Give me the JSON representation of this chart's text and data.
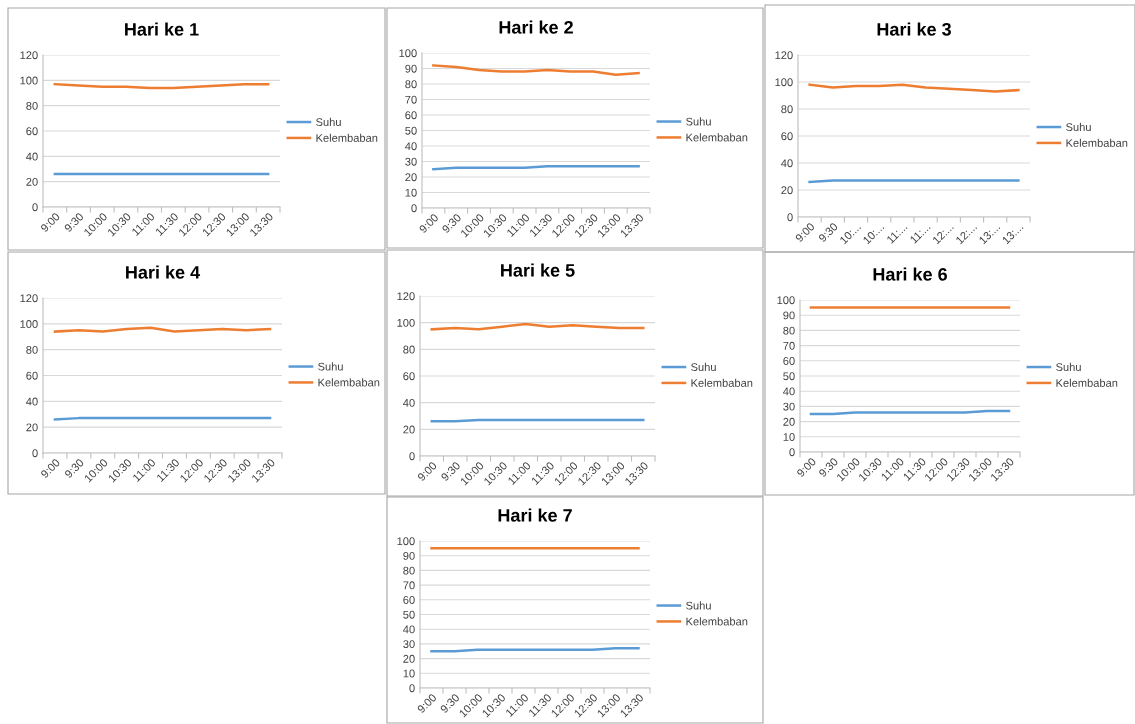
{
  "chart_data": [
    {
      "type": "line",
      "title": "Hari ke 1",
      "categories": [
        "9:00",
        "9:30",
        "10:00",
        "10:30",
        "11:00",
        "11:30",
        "12:00",
        "12:30",
        "13:00",
        "13:30"
      ],
      "ylim": [
        0,
        120
      ],
      "yticks": [
        0,
        20,
        40,
        60,
        80,
        100,
        120
      ],
      "grid": "y",
      "legend": "right",
      "series": [
        {
          "name": "Suhu",
          "color": "#5b9bd5",
          "values": [
            26,
            26,
            26,
            26,
            26,
            26,
            26,
            26,
            26,
            26
          ]
        },
        {
          "name": "Kelembaban",
          "color": "#ed7d31",
          "values": [
            97,
            96,
            95,
            95,
            94,
            94,
            95,
            96,
            97,
            97
          ]
        }
      ]
    },
    {
      "type": "line",
      "title": "Hari ke 2",
      "categories": [
        "9:00",
        "9:30",
        "10:00",
        "10:30",
        "11:00",
        "11:30",
        "12:00",
        "12:30",
        "13:00",
        "13:30"
      ],
      "ylim": [
        0,
        100
      ],
      "yticks": [
        0,
        10,
        20,
        30,
        40,
        50,
        60,
        70,
        80,
        90,
        100
      ],
      "grid": "y",
      "legend": "right",
      "series": [
        {
          "name": "Suhu",
          "color": "#5b9bd5",
          "values": [
            25,
            26,
            26,
            26,
            26,
            27,
            27,
            27,
            27,
            27
          ]
        },
        {
          "name": "Kelembaban",
          "color": "#ed7d31",
          "values": [
            92,
            91,
            89,
            88,
            88,
            89,
            88,
            88,
            86,
            87
          ]
        }
      ]
    },
    {
      "type": "line",
      "title": "Hari ke 3",
      "categories": [
        "9:00",
        "9:30",
        "10:...",
        "10:...",
        "11:...",
        "11:...",
        "12:...",
        "12:...",
        "13:...",
        "13:..."
      ],
      "ylim": [
        0,
        120
      ],
      "yticks": [
        0,
        20,
        40,
        60,
        80,
        100,
        120
      ],
      "grid": "y",
      "legend": "right",
      "series": [
        {
          "name": "Suhu",
          "color": "#5b9bd5",
          "values": [
            26,
            27,
            27,
            27,
            27,
            27,
            27,
            27,
            27,
            27
          ]
        },
        {
          "name": "Kelembaban",
          "color": "#ed7d31",
          "values": [
            98,
            96,
            97,
            97,
            98,
            96,
            95,
            94,
            93,
            94
          ]
        }
      ]
    },
    {
      "type": "line",
      "title": "Hari ke 4",
      "categories": [
        "9:00",
        "9:30",
        "10:00",
        "10:30",
        "11:00",
        "11:30",
        "12:00",
        "12:30",
        "13:00",
        "13:30"
      ],
      "ylim": [
        0,
        120
      ],
      "yticks": [
        0,
        20,
        40,
        60,
        80,
        100,
        120
      ],
      "grid": "y",
      "legend": "right",
      "series": [
        {
          "name": "Suhu",
          "color": "#5b9bd5",
          "values": [
            26,
            27,
            27,
            27,
            27,
            27,
            27,
            27,
            27,
            27
          ]
        },
        {
          "name": "Kelembaban",
          "color": "#ed7d31",
          "values": [
            94,
            95,
            94,
            96,
            97,
            94,
            95,
            96,
            95,
            96
          ]
        }
      ]
    },
    {
      "type": "line",
      "title": "Hari ke 5",
      "categories": [
        "9:00",
        "9:30",
        "10:00",
        "10:30",
        "11:00",
        "11:30",
        "12:00",
        "12:30",
        "13:00",
        "13:30"
      ],
      "ylim": [
        0,
        120
      ],
      "yticks": [
        0,
        20,
        40,
        60,
        80,
        100,
        120
      ],
      "grid": "y",
      "legend": "right",
      "series": [
        {
          "name": "Suhu",
          "color": "#5b9bd5",
          "values": [
            26,
            26,
            27,
            27,
            27,
            27,
            27,
            27,
            27,
            27
          ]
        },
        {
          "name": "Kelembaban",
          "color": "#ed7d31",
          "values": [
            95,
            96,
            95,
            97,
            99,
            97,
            98,
            97,
            96,
            96
          ]
        }
      ]
    },
    {
      "type": "line",
      "title": "Hari ke 6",
      "categories": [
        "9:00",
        "9:30",
        "10:00",
        "10:30",
        "11:00",
        "11:30",
        "12:00",
        "12:30",
        "13:00",
        "13:30"
      ],
      "ylim": [
        0,
        100
      ],
      "yticks": [
        0,
        10,
        20,
        30,
        40,
        50,
        60,
        70,
        80,
        90,
        100
      ],
      "grid": "y",
      "legend": "right",
      "series": [
        {
          "name": "Suhu",
          "color": "#5b9bd5",
          "values": [
            25,
            25,
            26,
            26,
            26,
            26,
            26,
            26,
            27,
            27
          ]
        },
        {
          "name": "Kelembaban",
          "color": "#ed7d31",
          "values": [
            95,
            95,
            95,
            95,
            95,
            95,
            95,
            95,
            95,
            95
          ]
        }
      ]
    },
    {
      "type": "line",
      "title": "Hari ke 7",
      "categories": [
        "9:00",
        "9:30",
        "10:00",
        "10:30",
        "11:00",
        "11:30",
        "12:00",
        "12:30",
        "13:00",
        "13:30"
      ],
      "ylim": [
        0,
        100
      ],
      "yticks": [
        0,
        10,
        20,
        30,
        40,
        50,
        60,
        70,
        80,
        90,
        100
      ],
      "grid": "y",
      "legend": "right",
      "series": [
        {
          "name": "Suhu",
          "color": "#5b9bd5",
          "values": [
            25,
            25,
            26,
            26,
            26,
            26,
            26,
            26,
            27,
            27
          ]
        },
        {
          "name": "Kelembaban",
          "color": "#ed7d31",
          "values": [
            95,
            95,
            95,
            95,
            95,
            95,
            95,
            95,
            95,
            95
          ]
        }
      ]
    }
  ]
}
